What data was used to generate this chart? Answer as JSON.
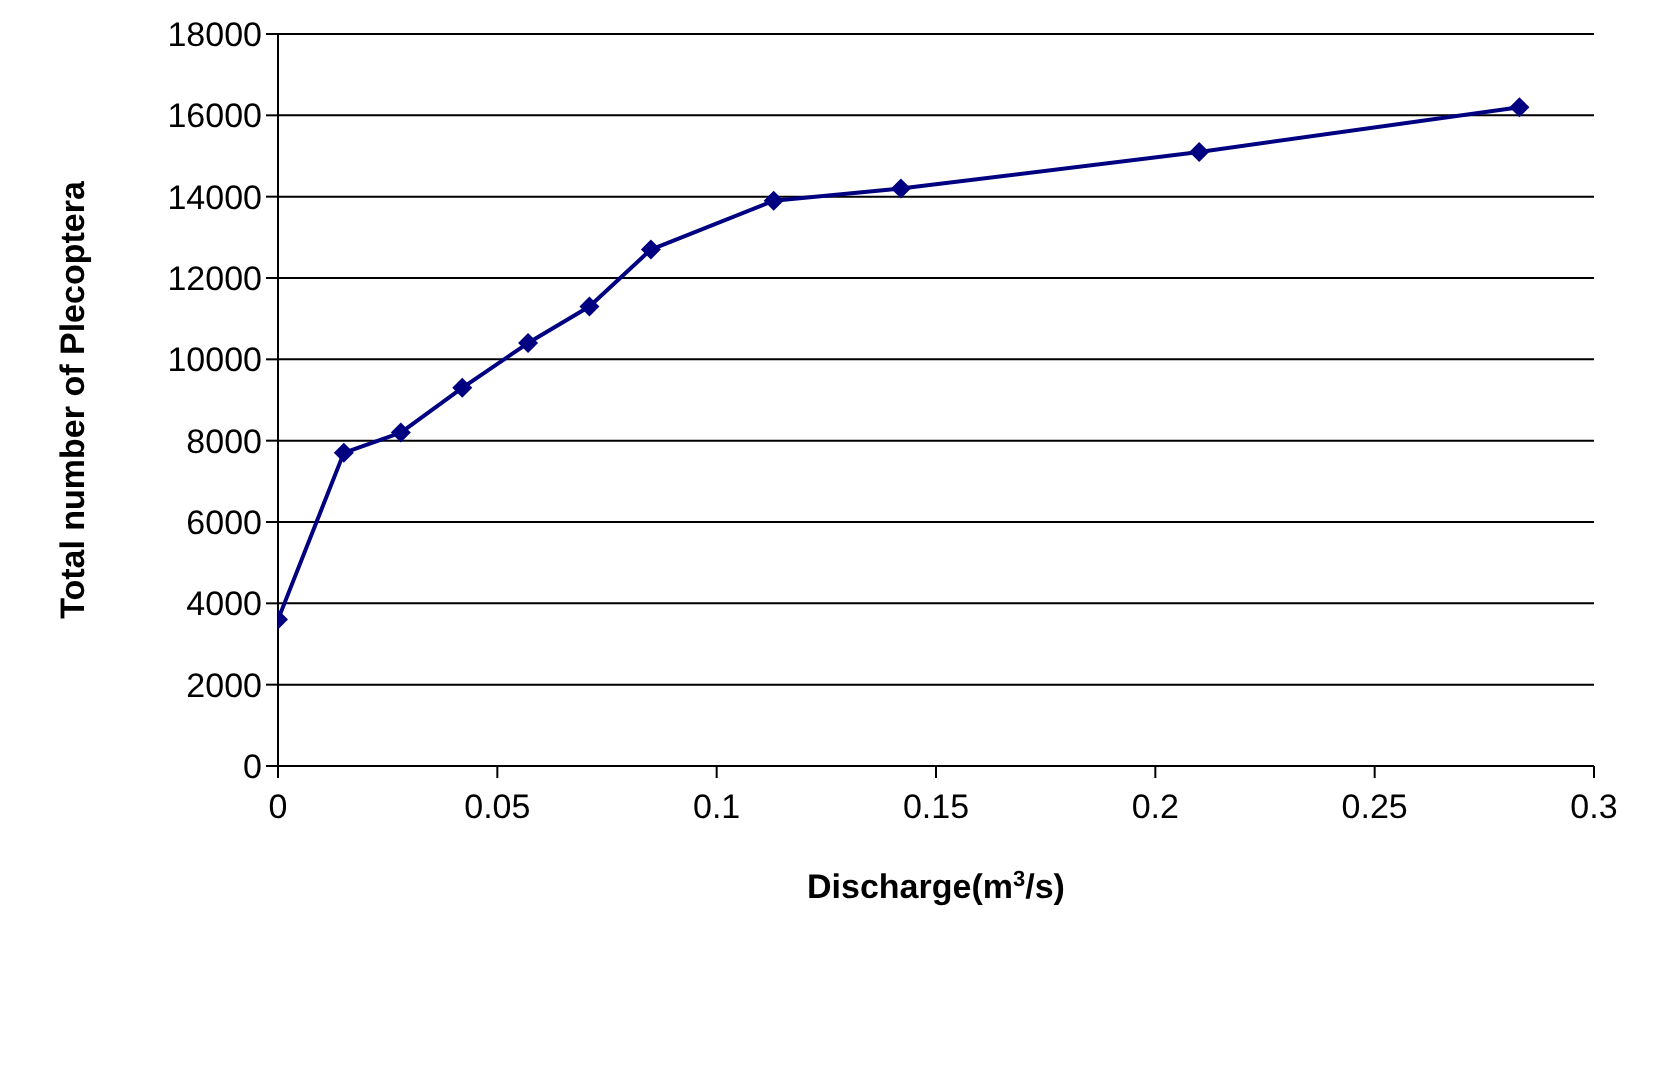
{
  "chart_data": {
    "type": "line",
    "xlabel": "Discharge(m$^{3}$/s)",
    "ylabel": "Total number of Plecoptera",
    "x": [
      0,
      0.015,
      0.028,
      0.042,
      0.057,
      0.071,
      0.085,
      0.113,
      0.142,
      0.21,
      0.283
    ],
    "series": [
      {
        "color": "#000080",
        "values": [
          3600,
          7700,
          8200,
          9300,
          10400,
          11300,
          12700,
          13900,
          14200,
          15100,
          16200
        ]
      }
    ],
    "xlim": [
      0,
      0.3
    ],
    "xticks": [
      0,
      0.05,
      0.1,
      0.15,
      0.2,
      0.25,
      0.3
    ],
    "ylim": [
      0,
      18000
    ],
    "yticks": [
      0,
      2000,
      4000,
      6000,
      8000,
      10000,
      12000,
      14000,
      16000,
      18000
    ],
    "grid": "y",
    "legend": false,
    "marker": "diamond",
    "line_style": "solid"
  }
}
